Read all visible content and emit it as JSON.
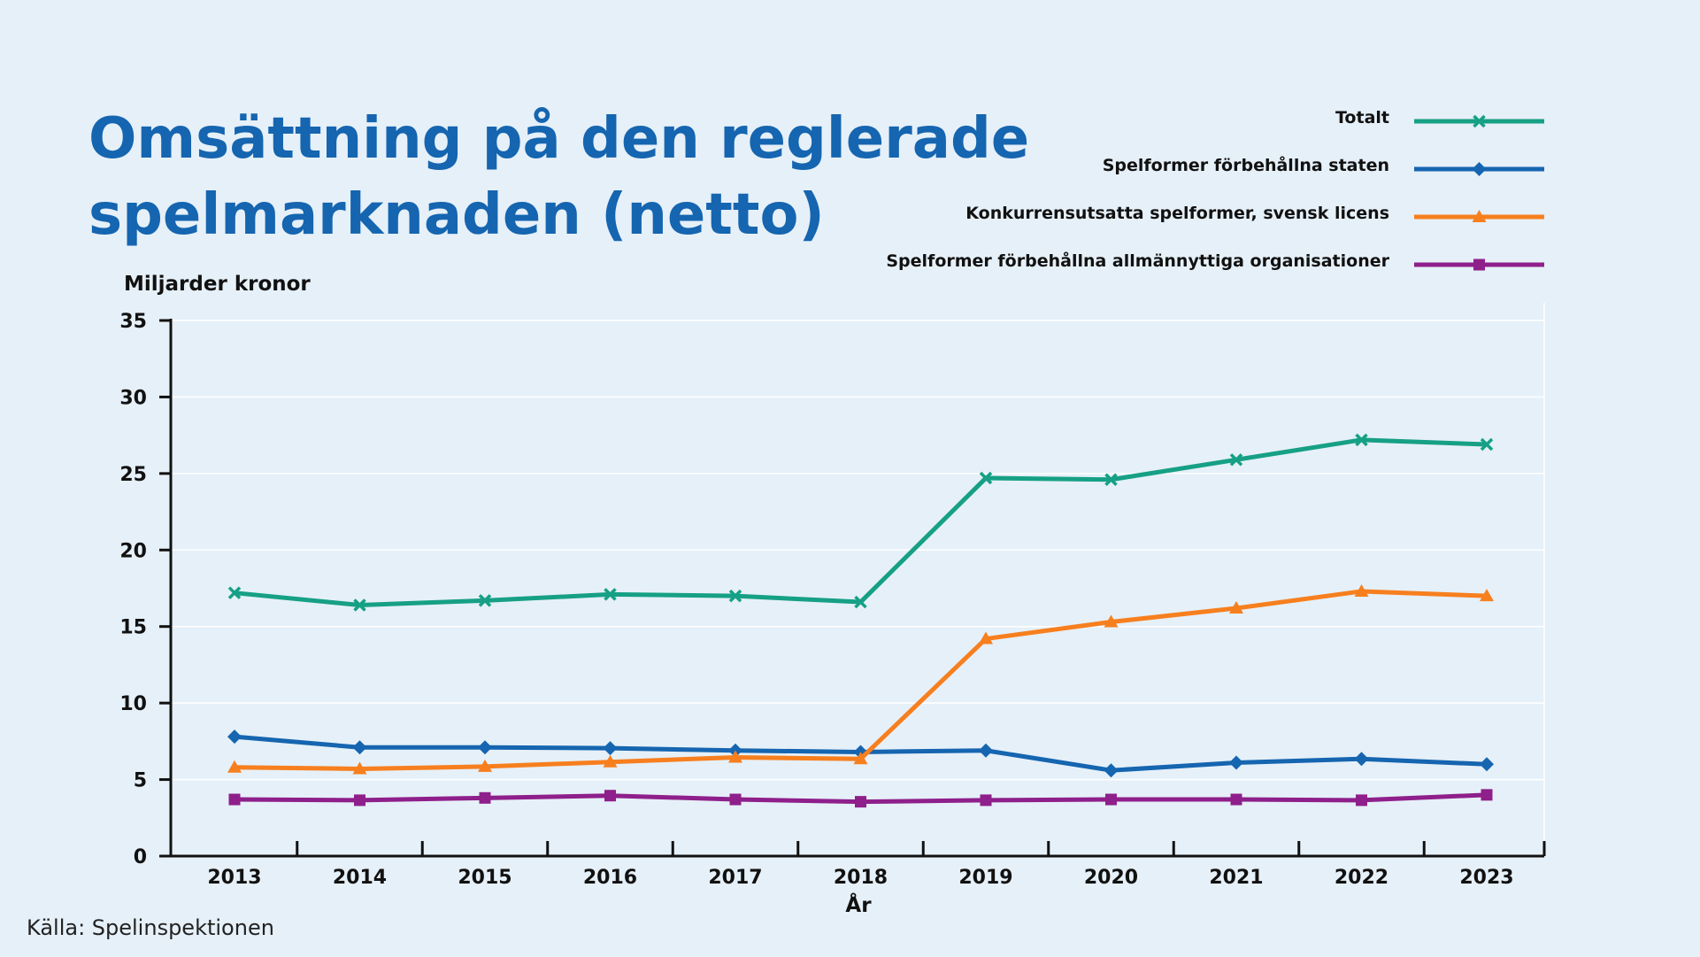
{
  "chart_data": {
    "type": "line",
    "title": "Omsättning på den reglerade spelmarknaden (netto)",
    "title_lines": [
      "Omsättning på den reglerade",
      "spelmarknaden (netto)"
    ],
    "ylabel": "Miljarder kronor",
    "xlabel": "År",
    "ylim": [
      0,
      35
    ],
    "yticks": [
      "0",
      "5",
      "10",
      "15",
      "20",
      "25",
      "30",
      "35"
    ],
    "grid": "horizontal",
    "legend_position": "top-right",
    "categories": [
      "2013",
      "2014",
      "2015",
      "2016",
      "2017",
      "2018",
      "2019",
      "2020",
      "2021",
      "2022",
      "2023"
    ],
    "series": [
      {
        "name": "Totalt",
        "marker": "x",
        "color": "#16a085",
        "values": [
          17.2,
          16.4,
          16.7,
          17.1,
          17.0,
          16.6,
          24.7,
          24.6,
          25.9,
          27.2,
          26.9
        ]
      },
      {
        "name": "Spelformer förbehållna staten",
        "marker": "diamond",
        "color": "#1565b0",
        "values": [
          7.8,
          7.1,
          7.1,
          7.05,
          6.9,
          6.8,
          6.9,
          5.6,
          6.1,
          6.35,
          6.0
        ]
      },
      {
        "name": "Konkurrensutsatta spelformer, svensk licens",
        "marker": "triangle",
        "color": "#f77f1e",
        "values": [
          5.8,
          5.7,
          5.85,
          6.15,
          6.45,
          6.35,
          14.2,
          15.3,
          16.2,
          17.3,
          17.0
        ]
      },
      {
        "name": "Spelformer förbehållna allmännyttiga organisationer",
        "marker": "square",
        "color": "#8e1f8b",
        "values": [
          3.7,
          3.65,
          3.8,
          3.95,
          3.7,
          3.55,
          3.65,
          3.7,
          3.7,
          3.65,
          4.0
        ]
      }
    ],
    "source": "Källa: Spelinspektionen"
  }
}
